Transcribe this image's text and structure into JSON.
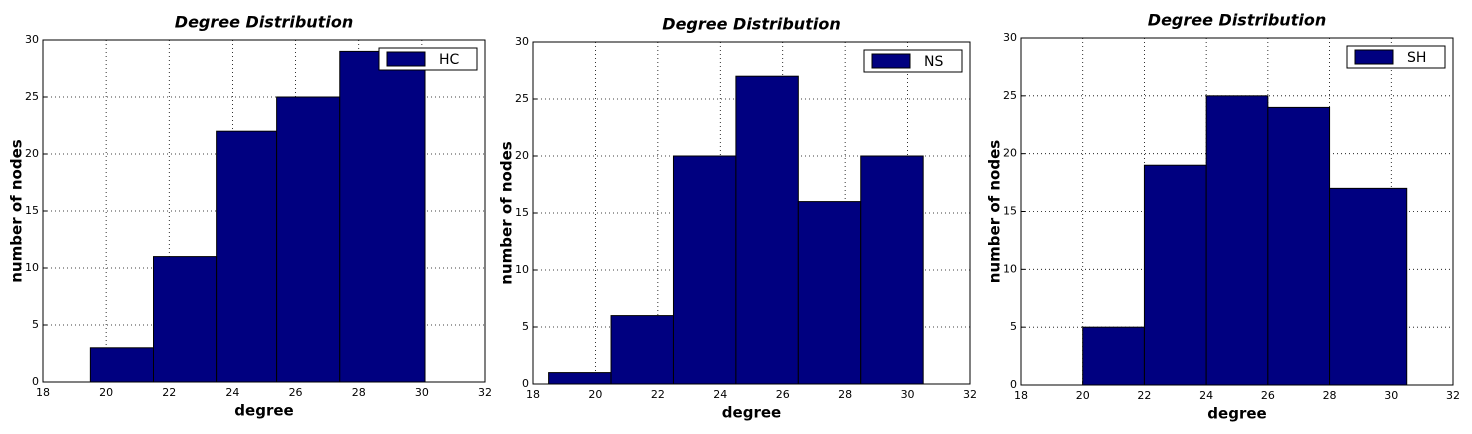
{
  "chart_data": [
    {
      "type": "histogram",
      "title": "Degree Distribution",
      "xlabel": "degree",
      "ylabel": "number of nodes",
      "bins": [
        19.5,
        21.5,
        23.5,
        25.4,
        27.4,
        30.1
      ],
      "series": [
        {
          "name": "HC",
          "color": "#000080",
          "values": [
            3,
            11,
            22,
            25,
            29
          ]
        }
      ],
      "xlim": [
        18,
        32
      ],
      "ylim": [
        0,
        30
      ],
      "xticks": [
        18,
        20,
        22,
        24,
        26,
        28,
        30,
        32
      ],
      "yticks": [
        0,
        5,
        10,
        15,
        20,
        25,
        30
      ],
      "grid": true,
      "legend": "upper right"
    },
    {
      "type": "histogram",
      "title": "Degree Distribution",
      "xlabel": "degree",
      "ylabel": "number of nodes",
      "bins": [
        18.5,
        20.5,
        22.5,
        24.5,
        26.5,
        28.5,
        30.5
      ],
      "series": [
        {
          "name": "NS",
          "color": "#000080",
          "values": [
            1,
            6,
            20,
            27,
            16,
            20
          ]
        }
      ],
      "xlim": [
        18,
        32
      ],
      "ylim": [
        0,
        30
      ],
      "xticks": [
        18,
        20,
        22,
        24,
        26,
        28,
        30,
        32
      ],
      "yticks": [
        0,
        5,
        10,
        15,
        20,
        25,
        30
      ],
      "grid": true,
      "legend": "upper right"
    },
    {
      "type": "histogram",
      "title": "Degree Distribution",
      "xlabel": "degree",
      "ylabel": "number of nodes",
      "bins": [
        20,
        22,
        24,
        26,
        28,
        30.5
      ],
      "series": [
        {
          "name": "SH",
          "color": "#000080",
          "values": [
            5,
            19,
            25,
            24,
            17
          ]
        }
      ],
      "xlim": [
        18,
        32
      ],
      "ylim": [
        0,
        30
      ],
      "xticks": [
        18,
        20,
        22,
        24,
        26,
        28,
        30,
        32
      ],
      "yticks": [
        0,
        5,
        10,
        15,
        20,
        25,
        30
      ],
      "grid": true,
      "legend": "upper right"
    }
  ]
}
